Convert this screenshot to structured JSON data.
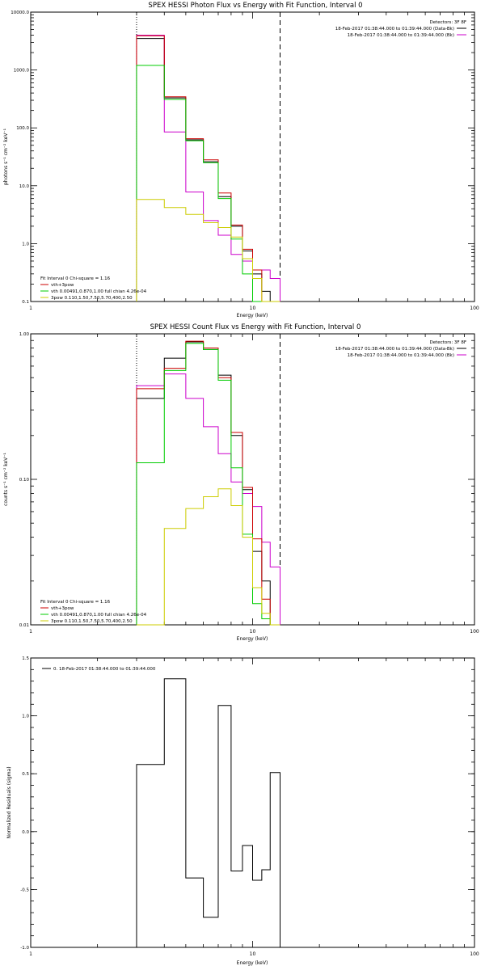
{
  "chart_data": [
    {
      "type": "line",
      "title": "SPEX HESSI Photon Flux vs Energy with Fit Function, Interval 0",
      "xlabel": "Energy (keV)",
      "ylabel": "photons s⁻¹ cm⁻² keV⁻¹",
      "xscale": "log",
      "yscale": "log",
      "xlim": [
        1,
        100
      ],
      "ylim": [
        0.1,
        10000
      ],
      "xticks": [
        1,
        10,
        100
      ],
      "xtick_labels": [
        "1",
        "10",
        "100"
      ],
      "yticks": [
        0.1,
        1,
        10,
        100,
        1000,
        10000
      ],
      "ytick_labels": [
        "0.1",
        "1.0",
        "10.0",
        "100.0",
        "1000.0",
        "10000.0"
      ],
      "legend_header": "Detectors: 3F 8F",
      "legend_entries": [
        {
          "label": "18-Feb-2017 01:38:44.000 to 01:39:44.000 (Data-Bk)",
          "color": "#000000"
        },
        {
          "label": "18-Feb-2017 01:38:44.000 to 01:39:44.000 (Bk)",
          "color": "#cc00cc"
        }
      ],
      "legend_placement": "top-right",
      "fit_header": "Fit Interval 0   Chi-square = 1.16",
      "fit_entries": [
        {
          "label": "vth+3pow",
          "color": "#cc0000"
        },
        {
          "label": "vth 0.00491,0.870,1.00  full chian 4.26e-04",
          "color": "#00cc00"
        },
        {
          "label": "3pow 0.110,1.50,7.50,5.70,400,2.50",
          "color": "#cccc00"
        }
      ],
      "fit_placement": "bottom-left",
      "vlines": [
        {
          "x": 3,
          "color": "#000000",
          "style": "dotted"
        },
        {
          "x": 13.3,
          "color": "#000000",
          "style": "dashed"
        }
      ],
      "bin_edges": [
        3,
        4,
        5,
        6,
        7,
        8,
        9,
        10,
        11,
        12,
        13.3
      ],
      "series": [
        {
          "name": "Data-Bk",
          "color": "#000000",
          "values": [
            3500,
            330,
            62,
            26,
            6.5,
            2,
            0.75,
            0.3,
            0.15,
            0.1
          ]
        },
        {
          "name": "Bk",
          "color": "#cc00cc",
          "values": [
            4000,
            85,
            7.8,
            2.5,
            1.4,
            0.65,
            0.5,
            0.35,
            0.35,
            0.25
          ]
        },
        {
          "name": "vth+3pow",
          "color": "#cc0000",
          "values": [
            3900,
            345,
            65,
            28,
            7.5,
            2.1,
            0.8,
            0.35,
            0.1,
            0.1
          ]
        },
        {
          "name": "vth",
          "color": "#00cc00",
          "values": [
            1200,
            310,
            60,
            25,
            6,
            1.2,
            0.3,
            0.1,
            0.1,
            0.1
          ]
        },
        {
          "name": "3pow",
          "color": "#cccc00",
          "values": [
            5.8,
            4.2,
            3.2,
            2.3,
            1.9,
            1.3,
            0.55,
            0.25,
            0.1,
            0.1
          ]
        }
      ]
    },
    {
      "type": "line",
      "title": "SPEX HESSI Count Flux vs Energy with Fit Function, Interval 0",
      "xlabel": "Energy (keV)",
      "ylabel": "counts s⁻¹ cm⁻² keV⁻¹",
      "xscale": "log",
      "yscale": "log",
      "xlim": [
        1,
        100
      ],
      "ylim": [
        0.01,
        1
      ],
      "xticks": [
        1,
        10,
        100
      ],
      "xtick_labels": [
        "1",
        "10",
        "100"
      ],
      "yticks": [
        0.01,
        0.1,
        1
      ],
      "ytick_labels": [
        "0.01",
        "0.10",
        "1.00"
      ],
      "legend_header": "Detectors: 3F 8F",
      "legend_entries": [
        {
          "label": "18-Feb-2017 01:38:44.000 to 01:39:44.000 (Data-Bk)",
          "color": "#000000"
        },
        {
          "label": "18-Feb-2017 01:38:44.000 to 01:39:44.000 (Bk)",
          "color": "#cc00cc"
        }
      ],
      "legend_placement": "top-right",
      "fit_header": "Fit Interval 0   Chi-square = 1.16",
      "fit_entries": [
        {
          "label": "vth+3pow",
          "color": "#cc0000"
        },
        {
          "label": "vth 0.00491,0.870,1.00  full chian 4.26e-04",
          "color": "#00cc00"
        },
        {
          "label": "3pow 0.110,1.50,7.50,5.70,400,2.50",
          "color": "#cccc00"
        }
      ],
      "fit_placement": "bottom-left",
      "vlines": [
        {
          "x": 3,
          "color": "#000000",
          "style": "dotted"
        },
        {
          "x": 13.3,
          "color": "#000000",
          "style": "dashed"
        }
      ],
      "bin_edges": [
        3,
        4,
        5,
        6,
        7,
        8,
        9,
        10,
        11,
        12,
        13.3
      ],
      "series": [
        {
          "name": "Data-Bk",
          "color": "#000000",
          "values": [
            0.36,
            0.68,
            0.88,
            0.78,
            0.52,
            0.2,
            0.085,
            0.032,
            0.02,
            0.01
          ]
        },
        {
          "name": "Bk",
          "color": "#cc00cc",
          "values": [
            0.44,
            0.53,
            0.36,
            0.23,
            0.15,
            0.096,
            0.08,
            0.065,
            0.037,
            0.025
          ]
        },
        {
          "name": "vth+3pow",
          "color": "#cc0000",
          "values": [
            0.42,
            0.58,
            0.89,
            0.8,
            0.5,
            0.21,
            0.088,
            0.039,
            0.015,
            0.01
          ]
        },
        {
          "name": "vth",
          "color": "#00cc00",
          "values": [
            0.13,
            0.56,
            0.86,
            0.78,
            0.48,
            0.12,
            0.042,
            0.014,
            0.011,
            0.01
          ]
        },
        {
          "name": "3pow",
          "color": "#cccc00",
          "values": [
            0.0055,
            0.046,
            0.063,
            0.076,
            0.086,
            0.066,
            0.04,
            0.018,
            0.012,
            0.01
          ]
        }
      ]
    },
    {
      "type": "line",
      "title": "",
      "xlabel": "Energy (keV)",
      "ylabel": "Normalized Residuals (sigma)",
      "xscale": "log",
      "yscale": "linear",
      "xlim": [
        1,
        100
      ],
      "ylim": [
        -1.0,
        1.5
      ],
      "xticks": [
        1,
        10,
        100
      ],
      "xtick_labels": [
        "1",
        "10",
        "100"
      ],
      "yticks": [
        -1.0,
        -0.5,
        0.0,
        0.5,
        1.0,
        1.5
      ],
      "ytick_labels": [
        "-1.0",
        "-0.5",
        "0.0",
        "0.5",
        "1.0",
        "1.5"
      ],
      "legend_entries": [
        {
          "label": "0. 18-Feb-2017 01:38:44.000 to 01:39:44.000",
          "color": "#000000"
        }
      ],
      "legend_placement": "top-left",
      "bin_edges": [
        3,
        4,
        5,
        6,
        7,
        8,
        9,
        10,
        11,
        12,
        13.3
      ],
      "series": [
        {
          "name": "0. 18-Feb-2017 01:38:44.000 to 01:39:44.000",
          "color": "#000000",
          "values": [
            0.58,
            1.32,
            -0.4,
            -0.74,
            1.09,
            -0.34,
            -0.12,
            -0.42,
            -0.33,
            0.51
          ]
        }
      ]
    }
  ]
}
